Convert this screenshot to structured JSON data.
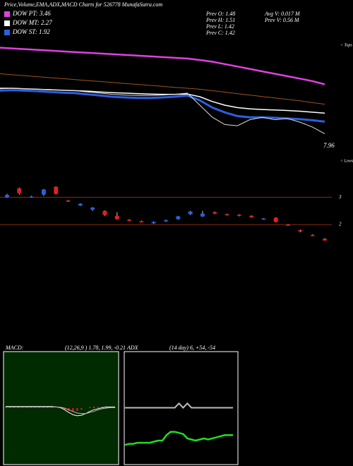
{
  "header": {
    "title": "Price,Volume,EMA,ADX,MACD Charts for 526778 MunafaSutra.com",
    "stats": [
      "Prev  O: 1.48",
      "Prev  H: 1.51",
      "Prev  L: 1.42",
      "Prev  C: 1.42",
      "Avg V: 0.017 M",
      "Prev  V: 0.56  M"
    ]
  },
  "chart_data": [
    {
      "type": "line",
      "ylim": [
        0.7,
        5.2
      ],
      "annotations": [
        "< Tops",
        "7.96"
      ],
      "series": [
        {
          "name": "DOW PT: 3.46",
          "color": "#e040e0",
          "width": 2.5,
          "values": [
            4.98,
            4.95,
            4.92,
            4.89,
            4.86,
            4.83,
            4.8,
            4.77,
            4.74,
            4.71,
            4.68,
            4.65,
            4.62,
            4.59,
            4.56,
            4.53,
            4.47,
            4.4,
            4.3,
            4.2,
            4.1,
            4.0,
            3.9,
            3.8,
            3.7,
            3.6,
            3.46
          ]
        },
        {
          "color": "#a0521c",
          "width": 1,
          "values": [
            3.9,
            3.86,
            3.82,
            3.78,
            3.74,
            3.7,
            3.66,
            3.62,
            3.58,
            3.54,
            3.5,
            3.46,
            3.42,
            3.38,
            3.34,
            3.3,
            3.26,
            3.2,
            3.14,
            3.08,
            3.02,
            2.96,
            2.9,
            2.84,
            2.78,
            2.71,
            2.64
          ]
        },
        {
          "name": "DOW MT: 2.27",
          "color": "#ffffff",
          "width": 1.5,
          "values": [
            3.3,
            3.3,
            3.28,
            3.26,
            3.24,
            3.22,
            3.2,
            3.18,
            3.15,
            3.12,
            3.1,
            3.08,
            3.06,
            3.05,
            3.05,
            3.06,
            2.95,
            2.75,
            2.6,
            2.5,
            2.45,
            2.42,
            2.4,
            2.38,
            2.35,
            2.31,
            2.27
          ]
        },
        {
          "name": "DOW ST: 1.92",
          "color": "#2a5fe0",
          "width": 3,
          "values": [
            3.2,
            3.22,
            3.2,
            3.18,
            3.15,
            3.12,
            3.1,
            3.05,
            3.0,
            2.95,
            2.92,
            2.9,
            2.9,
            2.92,
            2.95,
            3.0,
            2.8,
            2.5,
            2.3,
            2.15,
            2.1,
            2.1,
            2.08,
            2.05,
            2.02,
            1.98,
            1.92
          ]
        },
        {
          "color": "#dddddd",
          "width": 1,
          "values": [
            3.28,
            3.3,
            3.28,
            3.26,
            3.25,
            3.22,
            3.2,
            3.15,
            3.1,
            3.05,
            3.02,
            3.0,
            3.0,
            3.02,
            3.05,
            3.1,
            2.6,
            2.1,
            1.8,
            1.75,
            2.0,
            2.1,
            2.0,
            2.05,
            1.9,
            1.7,
            1.42
          ]
        }
      ]
    },
    {
      "type": "candlestick",
      "ylim": [
        -2.3,
        4.4
      ],
      "yticks": [
        2,
        3
      ],
      "grid_color": "#8b2a10",
      "up_color": "#2a5fe0",
      "down_color": "#e02020",
      "annotations": [
        "< Lows"
      ],
      "open": [
        3.0,
        3.32,
        3.0,
        3.1,
        3.38,
        2.88,
        2.7,
        2.55,
        2.5,
        2.32,
        2.18,
        2.12,
        2.05,
        2.12,
        2.2,
        2.38,
        2.3,
        2.45,
        2.38,
        2.36,
        2.32,
        2.2,
        2.25,
        2.0,
        1.8,
        1.62,
        1.48
      ],
      "high": [
        3.12,
        3.35,
        3.05,
        3.3,
        3.4,
        2.9,
        2.78,
        2.64,
        2.52,
        2.45,
        2.2,
        2.15,
        2.12,
        2.18,
        2.32,
        2.5,
        2.5,
        2.48,
        2.4,
        2.38,
        2.34,
        2.24,
        2.27,
        2.02,
        1.82,
        1.65,
        1.51
      ],
      "low": [
        2.98,
        3.1,
        2.98,
        3.05,
        3.1,
        2.83,
        2.68,
        2.5,
        2.32,
        2.18,
        2.12,
        2.08,
        2.03,
        2.1,
        2.18,
        2.35,
        2.28,
        2.38,
        2.33,
        2.3,
        2.25,
        2.18,
        2.08,
        1.96,
        1.72,
        1.58,
        1.42
      ],
      "close": [
        3.08,
        3.15,
        3.02,
        3.28,
        3.12,
        2.85,
        2.76,
        2.62,
        2.35,
        2.2,
        2.15,
        2.1,
        2.1,
        2.16,
        2.3,
        2.48,
        2.4,
        2.4,
        2.35,
        2.32,
        2.27,
        2.22,
        2.1,
        1.98,
        1.75,
        1.6,
        1.42
      ]
    },
    {
      "type": "macd",
      "title": "MACD:",
      "subtitle": "(12,26,9 ) 1.78, 1.99, -0.21",
      "ylim": [
        -10,
        10
      ],
      "background": "#002a00",
      "series": [
        {
          "color": "#ffffff",
          "values": [
            0.3,
            0.3,
            0.3,
            0.3,
            0.3,
            0.3,
            0.3,
            0.3,
            0.3,
            0.3,
            0.3,
            0.3,
            0.2,
            0.1,
            -0.3,
            -0.8,
            -1.2,
            -1.4,
            -1.3,
            -1.0,
            -0.6,
            -0.3,
            -0.1,
            0.1,
            0.2,
            0.2,
            0.2
          ]
        },
        {
          "color": "#bbbbbb",
          "values": [
            0.2,
            0.2,
            0.2,
            0.2,
            0.2,
            0.2,
            0.2,
            0.2,
            0.2,
            0.2,
            0.2,
            0.2,
            0.2,
            0.15,
            0.0,
            -0.3,
            -0.6,
            -0.9,
            -1.0,
            -1.0,
            -0.8,
            -0.6,
            -0.3,
            -0.1,
            0.0,
            0.1,
            0.1
          ]
        }
      ],
      "histogram": {
        "color": "#e02020",
        "values": [
          0.1,
          0.1,
          0.1,
          0.1,
          0.1,
          0.1,
          0.1,
          0.1,
          0.1,
          0.1,
          0.1,
          0.1,
          0,
          -0.05,
          -0.3,
          -0.5,
          -0.6,
          -0.5,
          -0.3,
          0,
          0.2,
          0.3,
          0.2,
          0.2,
          0.2,
          0.1,
          0.1
        ]
      }
    },
    {
      "type": "adx",
      "title": "ADX",
      "subtitle": "(14 day) 6, +54, -54",
      "ylim": [
        0,
        100
      ],
      "series": [
        {
          "color": "#bbbbbb",
          "width": 2,
          "values": [
            50,
            50,
            50,
            50,
            50,
            50,
            50,
            50,
            50,
            50,
            50,
            50,
            50,
            54,
            50,
            54,
            50,
            50,
            50,
            50,
            50,
            50,
            50,
            50,
            50,
            50,
            50
          ]
        },
        {
          "color": "#22dd22",
          "width": 2.5,
          "values": [
            16,
            17,
            17,
            18,
            18,
            18,
            18,
            19,
            20,
            20,
            25,
            28,
            28,
            27,
            26,
            22,
            21,
            20,
            21,
            22,
            21,
            22,
            23,
            24,
            25,
            25,
            25
          ]
        }
      ]
    }
  ]
}
